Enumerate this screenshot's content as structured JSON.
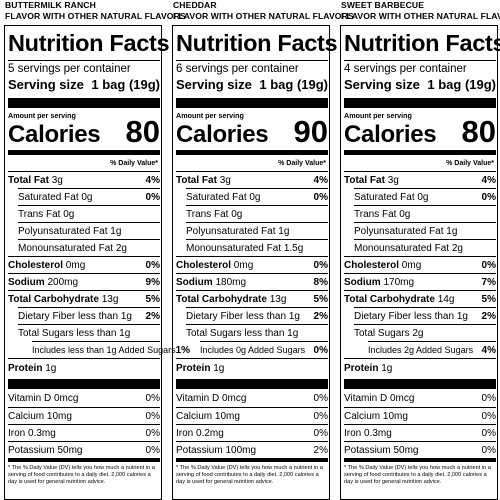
{
  "panels": [
    {
      "flavor_line1": "BUTTERMILK RANCH",
      "flavor_line2": "FLAVOR WITH OTHER NATURAL FLAVORS",
      "title": "Nutrition Facts",
      "servings": "5 servings per container",
      "serving_size_label": "Serving size",
      "serving_size_value": "1 bag (19g)",
      "amount_per_serving": "Amount per serving",
      "calories_label": "Calories",
      "calories": "80",
      "dv_header": "% Daily Value*",
      "total_fat_label": "Total Fat",
      "total_fat": "3g",
      "total_fat_dv": "4%",
      "sat_fat_label": "Saturated Fat",
      "sat_fat": "0g",
      "sat_fat_dv": "0%",
      "trans_fat": "Trans Fat 0g",
      "poly_fat": "Polyunsaturated Fat 1g",
      "mono_fat": "Monounsaturated Fat 2g",
      "cholesterol_label": "Cholesterol",
      "cholesterol": "0mg",
      "cholesterol_dv": "0%",
      "sodium_label": "Sodium",
      "sodium": "200mg",
      "sodium_dv": "9%",
      "carb_label": "Total Carbohydrate",
      "carb": "13g",
      "carb_dv": "5%",
      "fiber": "Dietary Fiber less than 1g",
      "fiber_dv": "2%",
      "sugars": "Total Sugars less than 1g",
      "sugars_dv": "",
      "added_sugars": "Includes less than 1g Added Sugars",
      "added_sugars_dv": "1%",
      "protein_label": "Protein",
      "protein": "1g",
      "vitamin_d": "Vitamin D 0mcg",
      "vitamin_d_dv": "0%",
      "calcium": "Calcium 10mg",
      "calcium_dv": "0%",
      "iron": "Iron 0.3mg",
      "iron_dv": "0%",
      "potassium": "Potassium 50mg",
      "potassium_dv": "0%",
      "footnote": "* The % Daily Value (DV) tells you how much a nutrient in a serving of food contributes to a daily diet. 2,000 calories a day is used for general nutrition advice."
    },
    {
      "flavor_line1": "CHEDDAR",
      "flavor_line2": "FLAVOR WITH OTHER NATURAL FLAVORS",
      "title": "Nutrition Facts",
      "servings": "6 servings per container",
      "serving_size_label": "Serving size",
      "serving_size_value": "1 bag (19g)",
      "amount_per_serving": "Amount per serving",
      "calories_label": "Calories",
      "calories": "90",
      "dv_header": "% Daily Value*",
      "total_fat_label": "Total Fat",
      "total_fat": "3g",
      "total_fat_dv": "4%",
      "sat_fat_label": "Saturated Fat",
      "sat_fat": "0g",
      "sat_fat_dv": "0%",
      "trans_fat": "Trans Fat 0g",
      "poly_fat": "Polyunsaturated Fat 1g",
      "mono_fat": "Monounsaturated Fat 1.5g",
      "cholesterol_label": "Cholesterol",
      "cholesterol": "0mg",
      "cholesterol_dv": "0%",
      "sodium_label": "Sodium",
      "sodium": "180mg",
      "sodium_dv": "8%",
      "carb_label": "Total Carbohydrate",
      "carb": "13g",
      "carb_dv": "5%",
      "fiber": "Dietary Fiber less than 1g",
      "fiber_dv": "2%",
      "sugars": "Total Sugars less than 1g",
      "sugars_dv": "",
      "added_sugars": "Includes 0g Added Sugars",
      "added_sugars_dv": "0%",
      "protein_label": "Protein",
      "protein": "1g",
      "vitamin_d": "Vitamin D 0mcg",
      "vitamin_d_dv": "0%",
      "calcium": "Calcium 10mg",
      "calcium_dv": "0%",
      "iron": "Iron 0.2mg",
      "iron_dv": "0%",
      "potassium": "Potassium 100mg",
      "potassium_dv": "2%",
      "footnote": "* The % Daily Value (DV) tells you how much a nutrient in a serving of food contributes to a daily diet. 2,000 calories a day is used for general nutrition advice."
    },
    {
      "flavor_line1": "SWEET BARBECUE",
      "flavor_line2": "FLAVOR WITH OTHER NATURAL FLAVORS",
      "title": "Nutrition Facts",
      "servings": "4 servings per container",
      "serving_size_label": "Serving size",
      "serving_size_value": "1 bag (19g)",
      "amount_per_serving": "Amount per serving",
      "calories_label": "Calories",
      "calories": "80",
      "dv_header": "% Daily Value*",
      "total_fat_label": "Total Fat",
      "total_fat": "3g",
      "total_fat_dv": "4%",
      "sat_fat_label": "Saturated Fat",
      "sat_fat": "0g",
      "sat_fat_dv": "0%",
      "trans_fat": "Trans Fat 0g",
      "poly_fat": "Polyunsaturated Fat 1g",
      "mono_fat": "Monounsaturated Fat 2g",
      "cholesterol_label": "Cholesterol",
      "cholesterol": "0mg",
      "cholesterol_dv": "0%",
      "sodium_label": "Sodium",
      "sodium": "170mg",
      "sodium_dv": "7%",
      "carb_label": "Total Carbohydrate",
      "carb": "14g",
      "carb_dv": "5%",
      "fiber": "Dietary Fiber less than 1g",
      "fiber_dv": "2%",
      "sugars": "Total Sugars 2g",
      "sugars_dv": "",
      "added_sugars": "Includes 2g Added Sugars",
      "added_sugars_dv": "4%",
      "protein_label": "Protein",
      "protein": "1g",
      "vitamin_d": "Vitamin D 0mcg",
      "vitamin_d_dv": "0%",
      "calcium": "Calcium 10mg",
      "calcium_dv": "0%",
      "iron": "Iron 0.3mg",
      "iron_dv": "0%",
      "potassium": "Potassium 50mg",
      "potassium_dv": "0%",
      "footnote": "* The % Daily Value (DV) tells you how much a nutrient in a serving of food contributes to a daily diet. 2,000 calories a day is used for general nutrition advice."
    }
  ]
}
